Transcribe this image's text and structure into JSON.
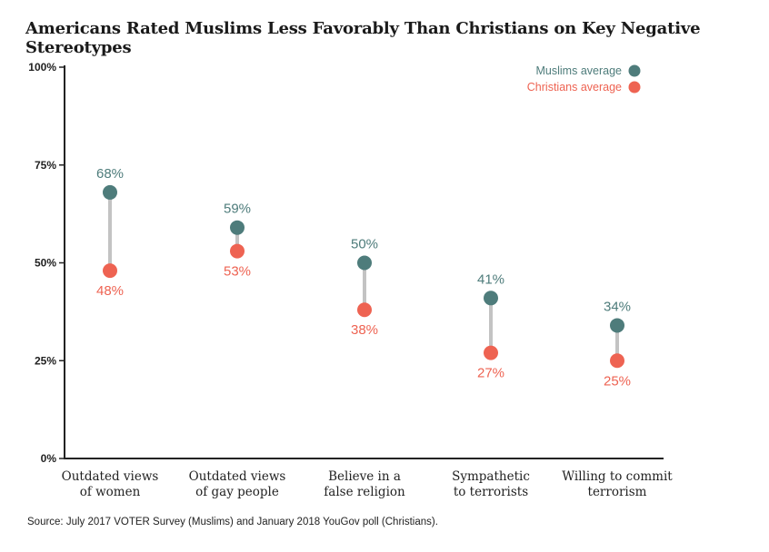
{
  "title": "Americans Rated Muslims Less Favorably Than Christians on Key Negative Stereotypes",
  "source": "Source: July 2017 VOTER Survey (Muslims) and January 2018 YouGov poll (Christians).",
  "chart_data": {
    "type": "dumbbell",
    "categories": [
      [
        "Outdated views",
        "of women"
      ],
      [
        "Outdated views",
        "of gay people"
      ],
      [
        "Believe in a",
        "false religion"
      ],
      [
        "Sympathetic",
        "to terrorists"
      ],
      [
        "Willing to commit",
        "terrorism"
      ]
    ],
    "series": [
      {
        "name": "Muslims average",
        "color": "#4e7c7b",
        "values": [
          68,
          59,
          50,
          41,
          34
        ],
        "labels": [
          "68%",
          "59%",
          "50%",
          "41%",
          "34%"
        ]
      },
      {
        "name": "Christians average",
        "color": "#ee6352",
        "values": [
          48,
          53,
          38,
          27,
          25
        ],
        "labels": [
          "48%",
          "53%",
          "38%",
          "27%",
          "25%"
        ]
      }
    ],
    "ylim": [
      0,
      100
    ],
    "yticks": [
      0,
      25,
      50,
      75,
      100
    ],
    "ytick_labels": [
      "0%",
      "25%",
      "50%",
      "75%",
      "100%"
    ],
    "legend_position": "top-right",
    "connector_color": "#c3c3c3"
  }
}
